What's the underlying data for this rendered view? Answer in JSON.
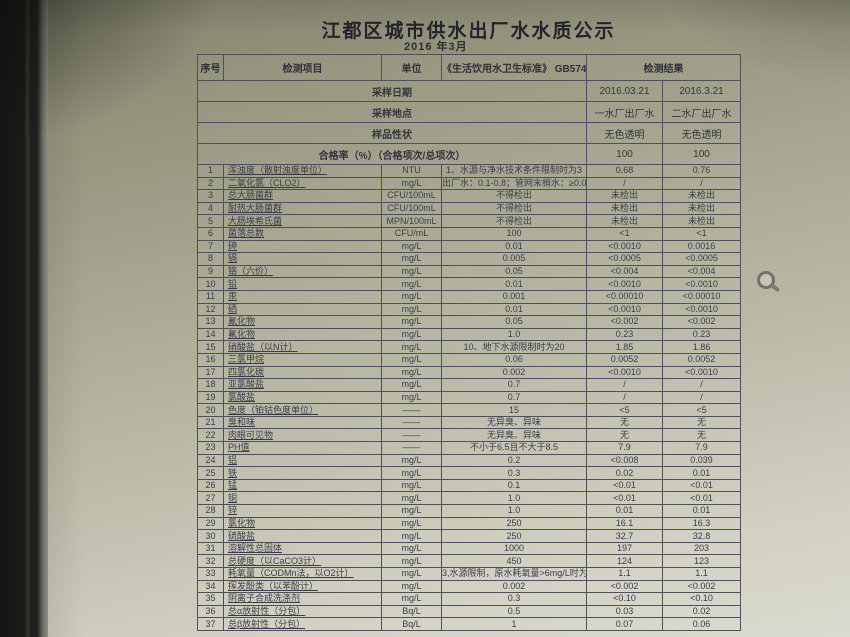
{
  "page": {
    "title": "江都区城市供水出厂水水质公示",
    "subtitle": "2016 年3月"
  },
  "colors": {
    "screen_tint": "#b0b09c",
    "bezel": "#1a1a18",
    "ink": "#3c3c47"
  },
  "icons": {
    "cursor": "magnifier-icon"
  },
  "info_rows": [
    {
      "label": "采样日期",
      "v1": "2016.03.21",
      "v2": "2016.3.21"
    },
    {
      "label": "采样地点",
      "v1": "一水厂出厂水",
      "v2": "二水厂出厂水"
    },
    {
      "label": "样品性状",
      "v1": "无色透明",
      "v2": "无色透明"
    },
    {
      "label": "合格率（%）（合格项次/总项次）",
      "v1": "100",
      "v2": "100"
    }
  ],
  "columns": {
    "no": "序号",
    "item": "检测项目",
    "unit": "单位",
    "standard": "《生活饮用水卫生标准》 GB5749",
    "result": "检测结果"
  },
  "rows": [
    {
      "no": "1",
      "item": "浑浊度（散射浊度单位）",
      "unit": "NTU",
      "standard": "1、水源与净水技术条件限制时为3",
      "r1": "0.68",
      "r2": "0.76"
    },
    {
      "no": "2",
      "item": "二氧化氯（CLO2）",
      "unit": "mg/L",
      "standard": "出厂水：0.1-0.8；管网末梢水：≥0.02",
      "r1": "/",
      "r2": "/"
    },
    {
      "no": "3",
      "item": "总大肠菌群",
      "unit": "CFU/100mL",
      "standard": "不得检出",
      "r1": "未检出",
      "r2": "未检出"
    },
    {
      "no": "4",
      "item": "耐热大肠菌群",
      "unit": "CFU/100mL",
      "standard": "不得检出",
      "r1": "未检出",
      "r2": "未检出"
    },
    {
      "no": "5",
      "item": "大肠埃希氏菌",
      "unit": "MPN/100mL",
      "standard": "不得检出",
      "r1": "未检出",
      "r2": "未检出"
    },
    {
      "no": "6",
      "item": "菌落总数",
      "unit": "CFU/mL",
      "standard": "100",
      "r1": "<1",
      "r2": "<1"
    },
    {
      "no": "7",
      "item": "砷",
      "unit": "mg/L",
      "standard": "0.01",
      "r1": "<0.0010",
      "r2": "0.0016"
    },
    {
      "no": "8",
      "item": "镉",
      "unit": "mg/L",
      "standard": "0.005",
      "r1": "<0.0005",
      "r2": "<0.0005"
    },
    {
      "no": "9",
      "item": "铬（六价）",
      "unit": "mg/L",
      "standard": "0.05",
      "r1": "<0.004",
      "r2": "<0.004"
    },
    {
      "no": "10",
      "item": "铅",
      "unit": "mg/L",
      "standard": "0.01",
      "r1": "<0.0010",
      "r2": "<0.0010"
    },
    {
      "no": "11",
      "item": "汞",
      "unit": "mg/L",
      "standard": "0.001",
      "r1": "<0.00010",
      "r2": "<0.00010"
    },
    {
      "no": "12",
      "item": "硒",
      "unit": "mg/L",
      "standard": "0.01",
      "r1": "<0.0010",
      "r2": "<0.0010"
    },
    {
      "no": "13",
      "item": "氰化物",
      "unit": "mg/L",
      "standard": "0.05",
      "r1": "<0.002",
      "r2": "<0.002"
    },
    {
      "no": "14",
      "item": "氟化物",
      "unit": "mg/L",
      "standard": "1.0",
      "r1": "0.23",
      "r2": "0.23"
    },
    {
      "no": "15",
      "item": "硝酸盐（以N计）",
      "unit": "mg/L",
      "standard": "10、地下水源限制时为20",
      "r1": "1.85",
      "r2": "1.86"
    },
    {
      "no": "16",
      "item": "三氯甲烷",
      "unit": "mg/L",
      "standard": "0.06",
      "r1": "0.0052",
      "r2": "0.0052"
    },
    {
      "no": "17",
      "item": "四氯化碳",
      "unit": "mg/L",
      "standard": "0.002",
      "r1": "<0.0010",
      "r2": "<0.0010"
    },
    {
      "no": "18",
      "item": "亚氯酸盐",
      "unit": "mg/L",
      "standard": "0.7",
      "r1": "/",
      "r2": "/"
    },
    {
      "no": "19",
      "item": "氯酸盐",
      "unit": "mg/L",
      "standard": "0.7",
      "r1": "/",
      "r2": "/"
    },
    {
      "no": "20",
      "item": "色度（铂钴色度单位）",
      "unit": "——",
      "standard": "15",
      "r1": "<5",
      "r2": "<5"
    },
    {
      "no": "21",
      "item": "臭和味",
      "unit": "——",
      "standard": "无异臭、异味",
      "r1": "无",
      "r2": "无"
    },
    {
      "no": "22",
      "item": "肉眼可见物",
      "unit": "——",
      "standard": "无异臭、异味",
      "r1": "无",
      "r2": "无"
    },
    {
      "no": "23",
      "item": "PH值",
      "unit": "——",
      "standard": "不小于6.5且不大于8.5",
      "r1": "7.9",
      "r2": "7.9"
    },
    {
      "no": "24",
      "item": "铝",
      "unit": "mg/L",
      "standard": "0.2",
      "r1": "<0.008",
      "r2": "0.039"
    },
    {
      "no": "25",
      "item": "铁",
      "unit": "mg/L",
      "standard": "0.3",
      "r1": "0.02",
      "r2": "0.01"
    },
    {
      "no": "26",
      "item": "锰",
      "unit": "mg/L",
      "standard": "0.1",
      "r1": "<0.01",
      "r2": "<0.01"
    },
    {
      "no": "27",
      "item": "铜",
      "unit": "mg/L",
      "standard": "1.0",
      "r1": "<0.01",
      "r2": "<0.01"
    },
    {
      "no": "28",
      "item": "锌",
      "unit": "mg/L",
      "standard": "1.0",
      "r1": "0.01",
      "r2": "0.01"
    },
    {
      "no": "29",
      "item": "氯化物",
      "unit": "mg/L",
      "standard": "250",
      "r1": "16.1",
      "r2": "16.3"
    },
    {
      "no": "30",
      "item": "硫酸盐",
      "unit": "mg/L",
      "standard": "250",
      "r1": "32.7",
      "r2": "32.8"
    },
    {
      "no": "31",
      "item": "溶解性总固体",
      "unit": "mg/L",
      "standard": "1000",
      "r1": "197",
      "r2": "203"
    },
    {
      "no": "32",
      "item": "总硬度（以CaCO3计）",
      "unit": "mg/L",
      "standard": "450",
      "r1": "124",
      "r2": "123"
    },
    {
      "no": "33",
      "item": "耗氧量（CODMn法，以O2计）",
      "unit": "mg/L",
      "standard": "3,水源限制，原水耗氧量>6mg/L时为5",
      "r1": "1.1",
      "r2": "1.1"
    },
    {
      "no": "34",
      "item": "挥发酚类（以苯酚计）",
      "unit": "mg/L",
      "standard": "0.002",
      "r1": "<0.002",
      "r2": "<0.002"
    },
    {
      "no": "35",
      "item": "阴离子合成洗涤剂",
      "unit": "mg/L",
      "standard": "0.3",
      "r1": "<0.10",
      "r2": "<0.10"
    },
    {
      "no": "36",
      "item": "总α放射性（分包）",
      "unit": "Bq/L",
      "standard": "0.5",
      "r1": "0.03",
      "r2": "0.02"
    },
    {
      "no": "37",
      "item": "总β放射性（分包）",
      "unit": "Bq/L",
      "standard": "1",
      "r1": "0.07",
      "r2": "0.06"
    }
  ]
}
